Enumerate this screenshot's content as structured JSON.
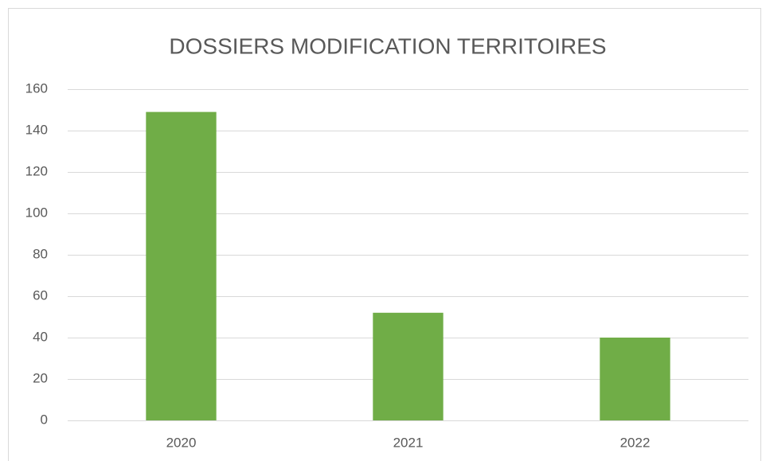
{
  "chart_data": {
    "type": "bar",
    "title": "DOSSIERS MODIFICATION TERRITOIRES",
    "categories": [
      "2020",
      "2021",
      "2022"
    ],
    "values": [
      149,
      52,
      40
    ],
    "color": "#70ad47",
    "ylim": [
      0,
      160
    ],
    "yticks": [
      0,
      20,
      40,
      60,
      80,
      100,
      120,
      140,
      160
    ],
    "grid": true
  }
}
